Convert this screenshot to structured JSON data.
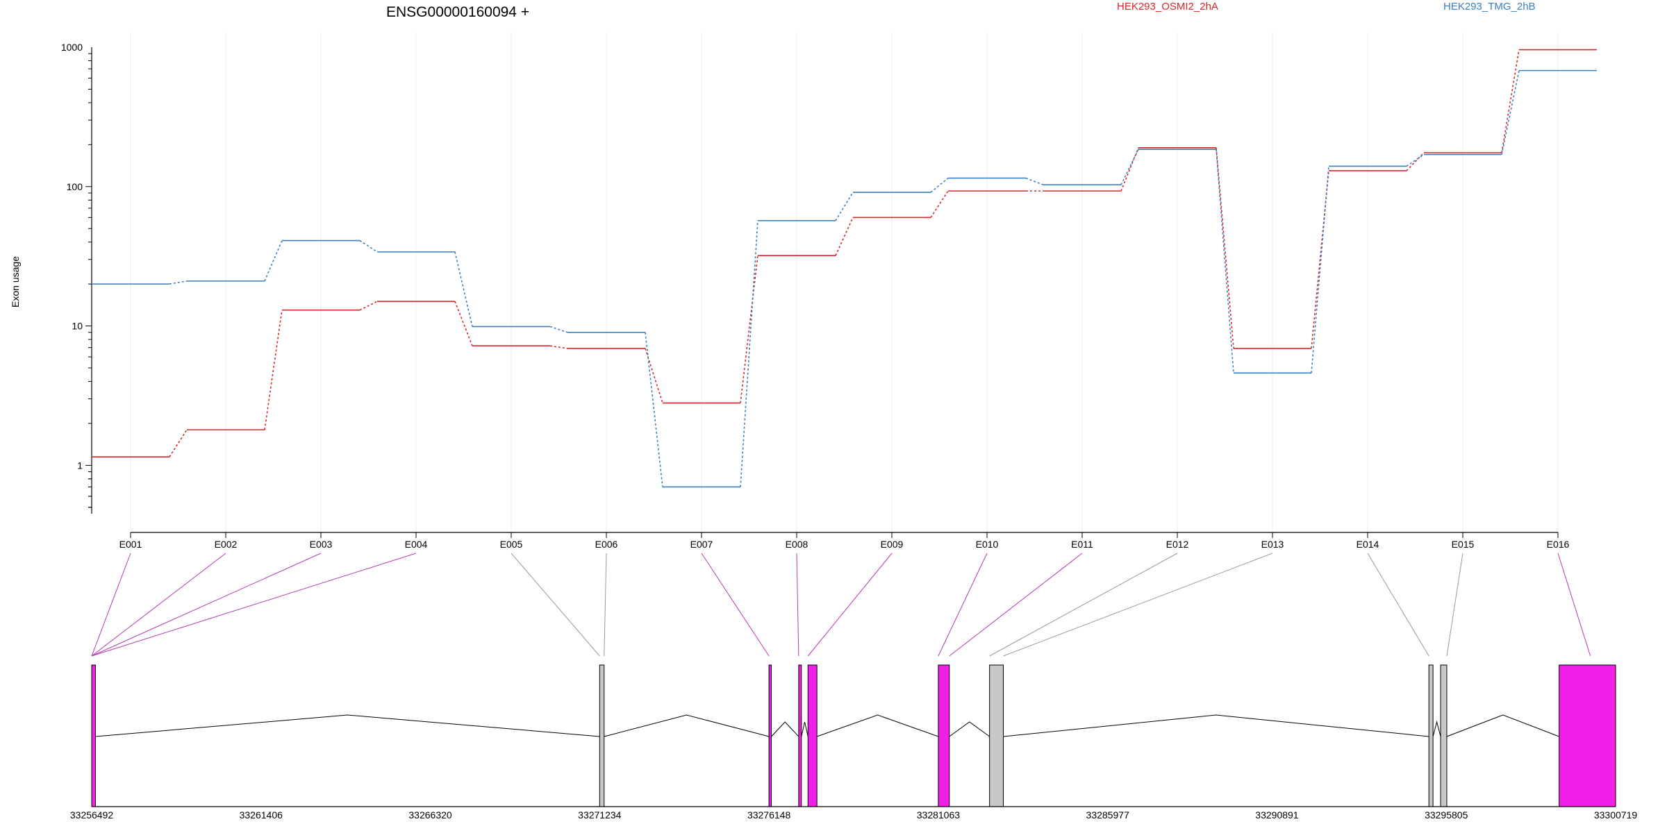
{
  "chart_data": {
    "type": "line",
    "title": "ENSG00000160094 +",
    "ylabel": "Exon usage",
    "xlabel": "",
    "y_scale": "log",
    "ylim": [
      0.45,
      1000
    ],
    "y_ticks": [
      {
        "value": 1,
        "label": "1"
      },
      {
        "value": 10,
        "label": "10"
      },
      {
        "value": 100,
        "label": "100"
      },
      {
        "value": 1000,
        "label": "1000"
      }
    ],
    "grid": "vertical",
    "legend_position": "top",
    "categories": [
      "E001",
      "E002",
      "E003",
      "E004",
      "E005",
      "E006",
      "E007",
      "E008",
      "E009",
      "E010",
      "E011",
      "E012",
      "E013",
      "E014",
      "E015",
      "E016"
    ],
    "series": [
      {
        "name": "HEK293_OSMI2_2hA",
        "color": "#d62728",
        "values": [
          1.15,
          1.8,
          13,
          15,
          7.2,
          6.9,
          2.8,
          32,
          60,
          93,
          93,
          190,
          6.9,
          130,
          175,
          960
        ]
      },
      {
        "name": "HEK293_TMG_2hB",
        "color": "#3a7fbf",
        "values": [
          20,
          21,
          41,
          34,
          9.9,
          9,
          0.7,
          57,
          91,
          115,
          103,
          185,
          4.6,
          140,
          170,
          680
        ]
      }
    ]
  },
  "gene_model": {
    "coordinate_labels": [
      "33256492",
      "33261406",
      "33266320",
      "33271234",
      "33276148",
      "33281063",
      "33285977",
      "33290891",
      "33295805",
      "33300719"
    ],
    "coordinate_range": [
      33256492,
      33300719
    ],
    "highlight_color": "#ef1fe7",
    "plain_color": "#c8c8c8",
    "highlighted_exons": [
      "E001",
      "E002",
      "E003",
      "E004",
      "E007",
      "E008",
      "E009",
      "E010",
      "E011",
      "E016"
    ]
  }
}
